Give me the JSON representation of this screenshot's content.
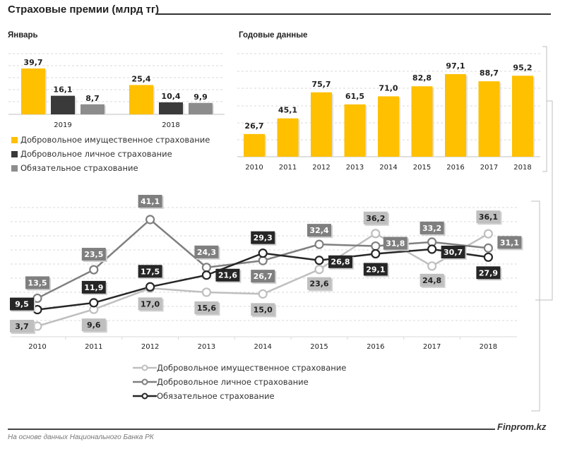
{
  "header": {
    "title": "Страховые премии (млрд тг)",
    "brand": "Finprom.kz",
    "source": "На основе данных Национального Банка РК"
  },
  "colors": {
    "voluntary_property": "#FFC000",
    "voluntary_personal": "#3A3A3A",
    "mandatory": "#8C8C8C",
    "line_voluntary_property": "#BFBFBF",
    "line_voluntary_personal": "#7F7F7F",
    "line_mandatory": "#262626"
  },
  "chart_data": [
    {
      "id": "january",
      "type": "bar",
      "title": "Январь",
      "categories": [
        "2019",
        "2018"
      ],
      "series": [
        {
          "name": "Добровольное имущественное страхование",
          "values": [
            39.7,
            25.4
          ],
          "labels": [
            "39,7",
            "25,4"
          ]
        },
        {
          "name": "Добровольное личное страхование",
          "values": [
            16.1,
            10.4
          ],
          "labels": [
            "16,1",
            "10,4"
          ]
        },
        {
          "name": "Обязательное страхование",
          "values": [
            8.7,
            9.9
          ],
          "labels": [
            "8,7",
            "9,9"
          ]
        }
      ],
      "ylim": [
        0,
        45
      ],
      "grid": true,
      "legend": "bottom"
    },
    {
      "id": "annual",
      "type": "bar",
      "title": "Годовые данные",
      "categories": [
        "2010",
        "2011",
        "2012",
        "2013",
        "2014",
        "2015",
        "2016",
        "2017",
        "2018"
      ],
      "values": [
        26.7,
        45.1,
        75.7,
        61.5,
        71.0,
        82.8,
        97.1,
        88.7,
        95.2
      ],
      "labels": [
        "26,7",
        "45,1",
        "75,7",
        "61,5",
        "71,0",
        "82,8",
        "97,1",
        "88,7",
        "95,2"
      ],
      "ylim": [
        0,
        120
      ],
      "grid": true
    },
    {
      "id": "shares",
      "type": "line",
      "title": "",
      "categories": [
        "2010",
        "2011",
        "2012",
        "2013",
        "2014",
        "2015",
        "2016",
        "2017",
        "2018"
      ],
      "series": [
        {
          "name": "Добровольное имущественное страхование",
          "values": [
            3.7,
            9.6,
            17.0,
            15.6,
            15.0,
            23.6,
            36.2,
            24.8,
            36.1
          ],
          "labels": [
            "3,7",
            "9,6",
            "17,0",
            "15,6",
            "15,0",
            "23,6",
            "36,2",
            "24,8",
            "36,1"
          ]
        },
        {
          "name": "Добровольное личное страхование",
          "values": [
            13.5,
            23.5,
            41.1,
            24.3,
            26.7,
            32.4,
            31.8,
            33.2,
            31.1
          ],
          "labels": [
            "13,5",
            "23,5",
            "41,1",
            "24,3",
            "26,7",
            "32,4",
            "31,8",
            "33,2",
            "31,1"
          ]
        },
        {
          "name": "Обязательное страхование",
          "values": [
            9.5,
            11.9,
            17.5,
            21.6,
            29.3,
            26.8,
            29.1,
            30.7,
            27.9
          ],
          "labels": [
            "9,5",
            "11,9",
            "17,5",
            "21,6",
            "29,3",
            "26,8",
            "29,1",
            "30,7",
            "27,9"
          ]
        }
      ],
      "ylim": [
        0,
        45
      ],
      "grid": true,
      "legend": "bottom"
    }
  ]
}
